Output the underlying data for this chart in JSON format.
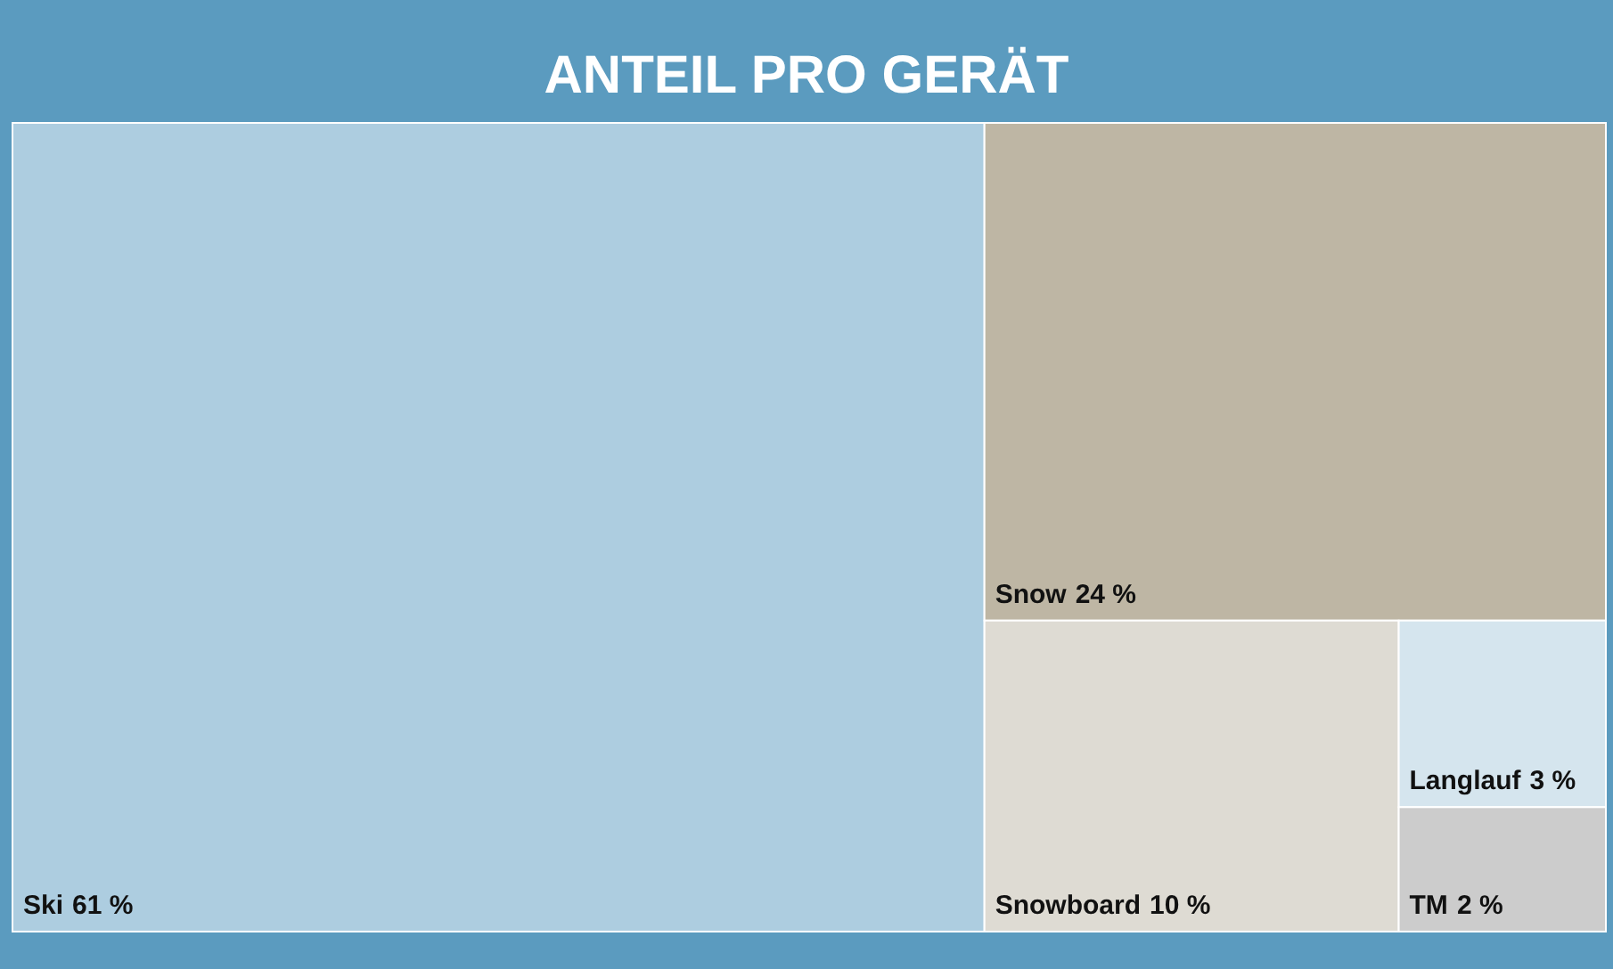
{
  "chart_data": {
    "type": "other",
    "title": "ANTEIL PRO GERÄT",
    "categories": [
      "Ski",
      "Snow",
      "Snowboard",
      "Langlauf",
      "TM"
    ],
    "values": [
      61,
      24,
      10,
      3,
      2
    ],
    "value_labels": [
      "61 %",
      "24 %",
      "10 %",
      "3 %",
      "2 %"
    ],
    "colors": [
      "#adcde0",
      "#beb6a4",
      "#dedbd3",
      "#d5e5ee",
      "#cccccc"
    ]
  }
}
